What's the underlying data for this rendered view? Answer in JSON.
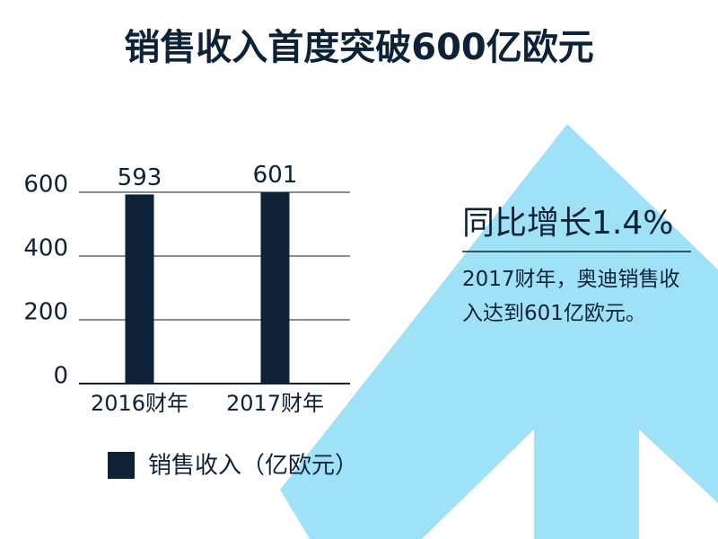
{
  "chart_data": {
    "type": "bar",
    "title": "销售收入首度突破600亿欧元",
    "categories": [
      "2016财年",
      "2017财年"
    ],
    "series": [
      {
        "name": "销售收入（亿欧元）",
        "color": "#0d2137",
        "values": [
          593,
          601
        ]
      }
    ],
    "ylim": [
      0,
      600
    ],
    "yticks": [
      0,
      200,
      400,
      600
    ],
    "grid": true,
    "legend": "bottom",
    "annotation": "同比增长1.4%",
    "note": "2017财年，奥迪销售收入达到601亿欧元。"
  }
}
